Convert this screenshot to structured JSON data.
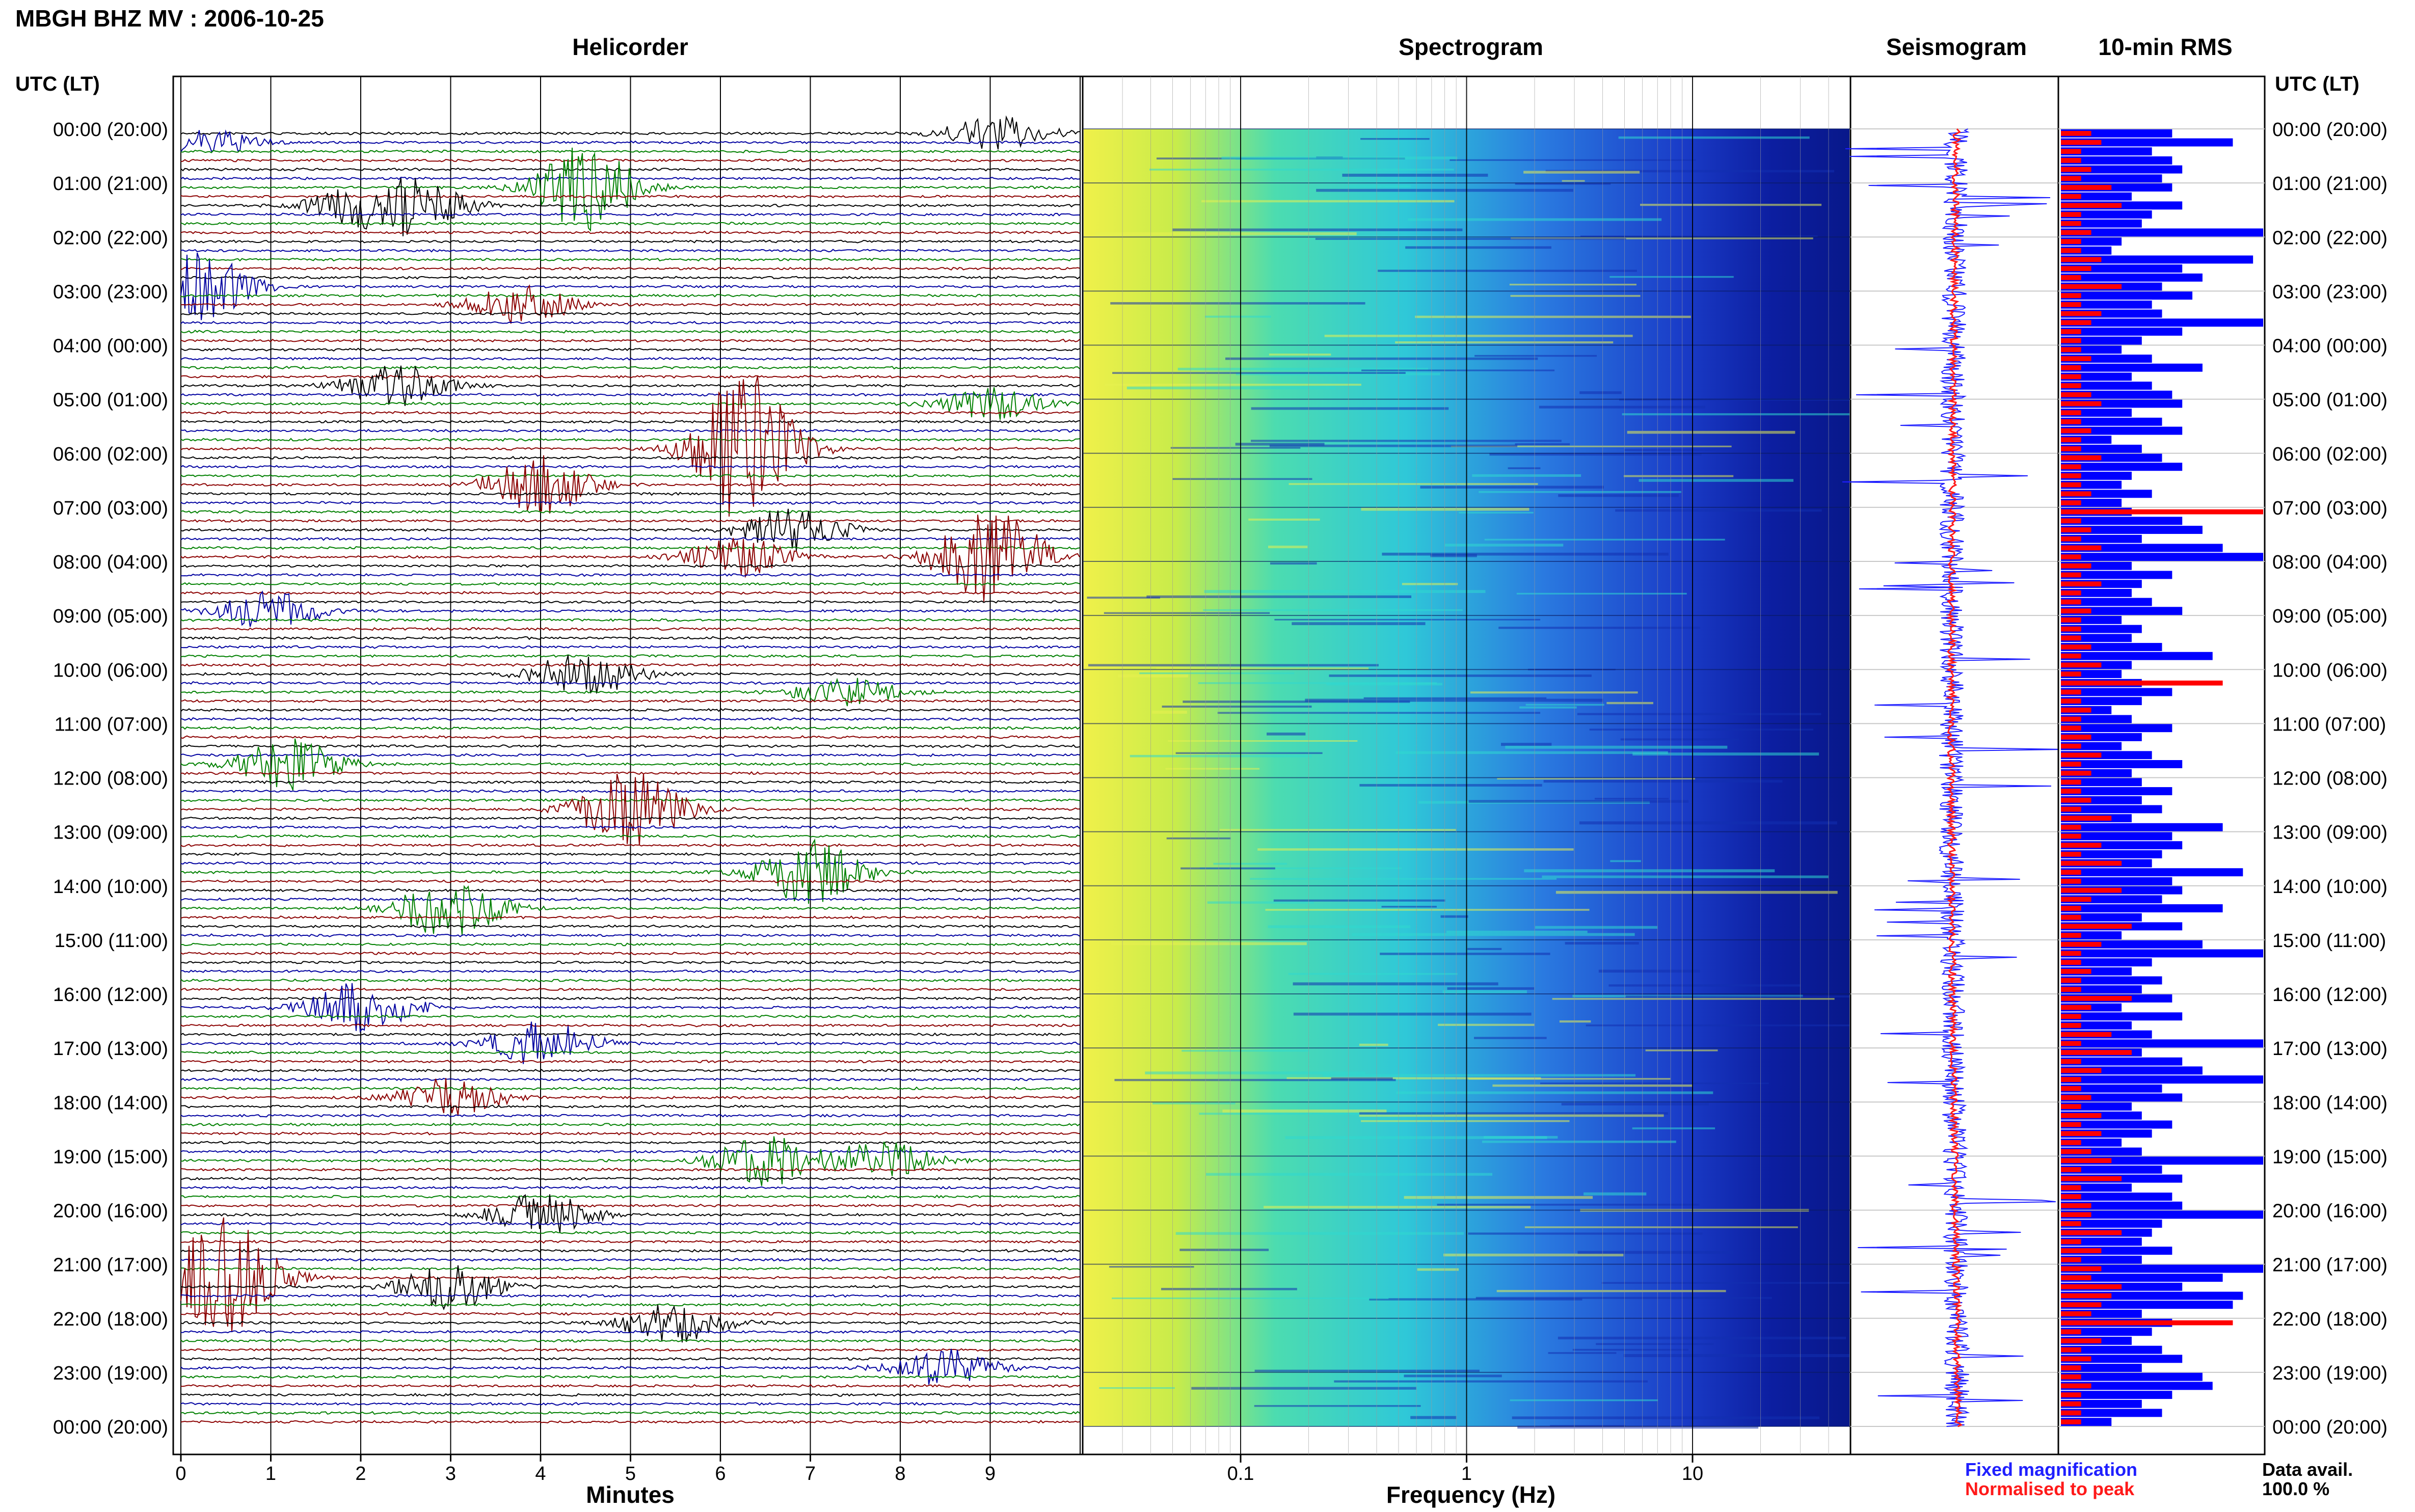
{
  "header": {
    "station_title": "MBGH BHZ MV : 2006-10-25",
    "time_axis_label": "UTC (LT)"
  },
  "panels": {
    "helicorder": "Helicorder",
    "spectrogram": "Spectrogram",
    "seismogram": "Seismogram",
    "rms": "10-min RMS"
  },
  "axes": {
    "minutes_label": "Minutes",
    "frequency_label": "Frequency (Hz)"
  },
  "legend": {
    "fixed": "Fixed magnification",
    "normalised": "Normalised to peak",
    "fixed_color": "#1f1fff",
    "normalised_color": "#ff1a1a"
  },
  "data_availability": {
    "label": "Data avail.",
    "value": "100.0 %"
  },
  "colors": {
    "trace_cycle": [
      "#000000",
      "#0000a0",
      "#008000",
      "#8b0000"
    ],
    "spectrogram_low": "#f2f23a",
    "spectrogram_mid": "#2fd0d0",
    "spectrogram_high": "#0a1a8c",
    "rms_fixed": "#0000ff",
    "rms_normalised": "#ff0000"
  },
  "chart_data": [
    {
      "type": "line",
      "panel": "helicorder",
      "title": "Helicorder",
      "xlabel": "Minutes",
      "xlim": [
        0,
        10
      ],
      "x_ticks": [
        "0",
        "1",
        "2",
        "3",
        "4",
        "5",
        "6",
        "7",
        "8",
        "9"
      ],
      "rows_per_hour": 6,
      "hour_ticks": [
        "00:00 (20:00)",
        "01:00 (21:00)",
        "02:00 (22:00)",
        "03:00 (23:00)",
        "04:00 (00:00)",
        "05:00 (01:00)",
        "06:00 (02:00)",
        "07:00 (03:00)",
        "08:00 (04:00)",
        "09:00 (05:00)",
        "10:00 (06:00)",
        "11:00 (07:00)",
        "12:00 (08:00)",
        "13:00 (09:00)",
        "14:00 (10:00)",
        "15:00 (11:00)",
        "16:00 (12:00)",
        "17:00 (13:00)",
        "18:00 (14:00)",
        "19:00 (15:00)",
        "20:00 (16:00)",
        "21:00 (17:00)",
        "22:00 (18:00)",
        "23:00 (19:00)",
        "00:00 (20:00)"
      ],
      "events": [
        {
          "row": 0,
          "minute": 9.1,
          "amplitude": 0.9
        },
        {
          "row": 1,
          "minute": 0.3,
          "amplitude": 0.6
        },
        {
          "row": 6,
          "minute": 4.5,
          "amplitude": 2.2
        },
        {
          "row": 8,
          "minute": 2.6,
          "amplitude": 1.3
        },
        {
          "row": 8,
          "minute": 2.0,
          "amplitude": 0.9
        },
        {
          "row": 17,
          "minute": 0.2,
          "amplitude": 1.8
        },
        {
          "row": 19,
          "minute": 3.8,
          "amplitude": 1.0
        },
        {
          "row": 28,
          "minute": 2.4,
          "amplitude": 1.1
        },
        {
          "row": 30,
          "minute": 9.0,
          "amplitude": 0.8
        },
        {
          "row": 35,
          "minute": 6.3,
          "amplitude": 4.0
        },
        {
          "row": 39,
          "minute": 4.0,
          "amplitude": 1.5
        },
        {
          "row": 44,
          "minute": 6.8,
          "amplitude": 1.1
        },
        {
          "row": 47,
          "minute": 9.0,
          "amplitude": 2.8
        },
        {
          "row": 47,
          "minute": 6.2,
          "amplitude": 1.0
        },
        {
          "row": 53,
          "minute": 1.0,
          "amplitude": 1.0
        },
        {
          "row": 60,
          "minute": 4.5,
          "amplitude": 1.2
        },
        {
          "row": 62,
          "minute": 7.4,
          "amplitude": 0.8
        },
        {
          "row": 70,
          "minute": 1.2,
          "amplitude": 1.3
        },
        {
          "row": 75,
          "minute": 5.0,
          "amplitude": 2.0
        },
        {
          "row": 82,
          "minute": 7.0,
          "amplitude": 1.8
        },
        {
          "row": 86,
          "minute": 3.0,
          "amplitude": 1.6
        },
        {
          "row": 97,
          "minute": 2.0,
          "amplitude": 1.3
        },
        {
          "row": 101,
          "minute": 4.0,
          "amplitude": 1.2
        },
        {
          "row": 107,
          "minute": 3.0,
          "amplitude": 1.0
        },
        {
          "row": 114,
          "minute": 6.5,
          "amplitude": 1.3
        },
        {
          "row": 114,
          "minute": 7.8,
          "amplitude": 1.0
        },
        {
          "row": 120,
          "minute": 4.0,
          "amplitude": 1.1
        },
        {
          "row": 127,
          "minute": 0.5,
          "amplitude": 3.2
        },
        {
          "row": 128,
          "minute": 3.0,
          "amplitude": 1.2
        },
        {
          "row": 132,
          "minute": 5.5,
          "amplitude": 1.1
        },
        {
          "row": 137,
          "minute": 8.5,
          "amplitude": 1.0
        }
      ]
    },
    {
      "type": "heatmap",
      "panel": "spectrogram",
      "title": "Spectrogram",
      "xlabel": "Frequency (Hz)",
      "x_scale": "log",
      "xlim": [
        0.02,
        50
      ],
      "x_ticks": [
        "0.1",
        "1",
        "10"
      ],
      "x_tick_values": [
        0.1,
        1,
        10
      ],
      "hours": 24,
      "description_levels": {
        "low_freq_power": "high",
        "high_freq_power": "low"
      }
    },
    {
      "type": "line",
      "panel": "seismogram",
      "title": "Seismogram",
      "series": [
        {
          "name": "Fixed magnification",
          "color": "#1f1fff"
        },
        {
          "name": "Normalised to peak",
          "color": "#ff1a1a"
        }
      ],
      "hours": 24
    },
    {
      "type": "bar",
      "panel": "rms",
      "title": "10-min RMS",
      "orientation": "horizontal",
      "bins": 144,
      "series": [
        {
          "name": "Fixed magnification",
          "color": "#0000ff",
          "values": [
            0.55,
            0.85,
            0.45,
            0.55,
            0.6,
            0.5,
            0.55,
            0.35,
            0.6,
            0.45,
            0.4,
            1.0,
            0.3,
            0.25,
            0.95,
            0.6,
            0.7,
            0.5,
            0.65,
            0.45,
            0.5,
            1.0,
            0.6,
            0.4,
            0.3,
            0.45,
            0.7,
            0.35,
            0.45,
            0.55,
            0.6,
            0.35,
            0.5,
            0.6,
            0.25,
            0.4,
            0.5,
            0.6,
            0.35,
            0.3,
            0.45,
            0.3,
            0.35,
            0.6,
            0.7,
            0.4,
            0.8,
            1.0,
            0.35,
            0.55,
            0.4,
            0.35,
            0.45,
            0.6,
            0.3,
            0.4,
            0.35,
            0.5,
            0.75,
            0.35,
            0.3,
            0.4,
            0.55,
            0.4,
            0.25,
            0.35,
            0.55,
            0.4,
            0.3,
            0.45,
            0.6,
            0.35,
            0.4,
            0.55,
            0.4,
            0.5,
            0.35,
            0.8,
            0.55,
            0.6,
            0.5,
            0.45,
            0.9,
            0.55,
            0.6,
            0.5,
            0.8,
            0.4,
            0.6,
            0.3,
            0.7,
            1.0,
            0.45,
            0.35,
            0.5,
            0.4,
            0.55,
            0.3,
            0.6,
            0.35,
            0.45,
            1.0,
            0.4,
            0.6,
            0.7,
            1.0,
            0.5,
            0.6,
            0.35,
            0.4,
            0.55,
            0.45,
            0.3,
            0.4,
            1.0,
            0.5,
            0.6,
            0.35,
            0.55,
            0.6,
            1.0,
            0.5,
            0.45,
            0.4,
            0.55,
            0.4,
            1.0,
            0.8,
            0.6,
            0.9,
            0.85,
            0.4,
            0.55,
            0.45,
            0.35,
            0.5,
            0.6,
            0.4,
            0.7,
            0.75,
            0.55,
            0.4,
            0.5,
            0.25
          ]
        },
        {
          "name": "Normalised to peak",
          "color": "#ff0000",
          "values": [
            0.15,
            0.2,
            0.1,
            0.1,
            0.15,
            0.1,
            0.25,
            0.1,
            0.3,
            0.1,
            0.1,
            0.15,
            0.1,
            0.1,
            0.2,
            0.15,
            0.1,
            0.3,
            0.1,
            0.1,
            0.2,
            0.15,
            0.1,
            0.1,
            0.1,
            0.15,
            0.1,
            0.1,
            0.1,
            0.15,
            0.2,
            0.1,
            0.1,
            0.15,
            0.1,
            0.1,
            0.2,
            0.1,
            0.1,
            0.1,
            0.15,
            0.1,
            1.0,
            0.1,
            0.15,
            0.1,
            0.2,
            0.1,
            0.15,
            0.1,
            0.2,
            0.1,
            0.1,
            0.15,
            0.1,
            0.1,
            0.1,
            0.15,
            0.1,
            0.2,
            0.1,
            0.8,
            0.1,
            0.1,
            0.15,
            0.1,
            0.1,
            0.15,
            0.1,
            0.2,
            0.1,
            0.15,
            0.1,
            0.1,
            0.15,
            0.1,
            0.25,
            0.1,
            0.1,
            0.2,
            0.1,
            0.3,
            0.1,
            0.1,
            0.3,
            0.15,
            0.1,
            0.1,
            0.35,
            0.1,
            0.2,
            0.1,
            0.1,
            0.15,
            0.1,
            0.1,
            0.35,
            0.15,
            0.1,
            0.1,
            0.25,
            0.1,
            0.35,
            0.1,
            0.2,
            0.1,
            0.1,
            0.15,
            0.1,
            0.2,
            0.1,
            0.2,
            0.1,
            0.15,
            0.25,
            0.1,
            0.3,
            0.1,
            0.1,
            0.15,
            0.15,
            0.1,
            0.3,
            0.1,
            0.2,
            0.1,
            0.2,
            0.15,
            0.3,
            0.25,
            0.2,
            0.15,
            0.85,
            0.1,
            0.2,
            0.1,
            0.15,
            0.1,
            0.1,
            0.15,
            0.1,
            0.1,
            0.1,
            0.1
          ]
        }
      ]
    }
  ]
}
